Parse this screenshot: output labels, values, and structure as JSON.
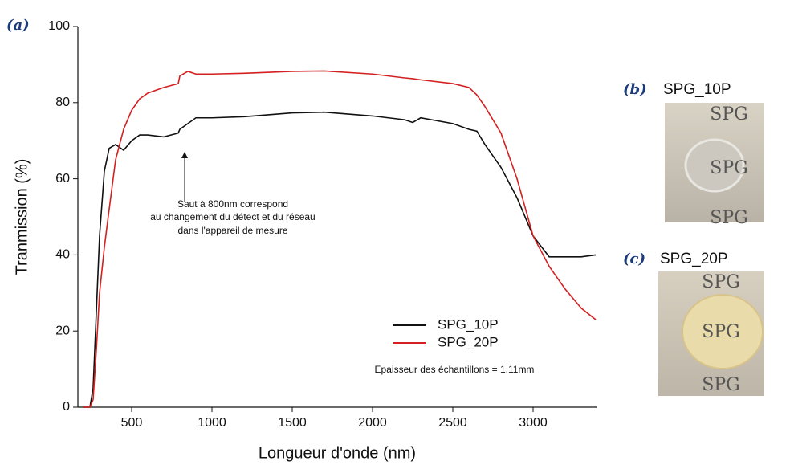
{
  "chart_data": {
    "type": "line",
    "panel_label": "(a)",
    "x_label": "Longueur d'onde (nm)",
    "y_label": "Tranmission (%)",
    "x": [
      200,
      240,
      260,
      280,
      300,
      330,
      360,
      400,
      450,
      500,
      550,
      600,
      700,
      790,
      800,
      850,
      900,
      1000,
      1200,
      1500,
      1700,
      2000,
      2200,
      2250,
      2300,
      2500,
      2600,
      2650,
      2700,
      2800,
      2900,
      3000,
      3100,
      3200,
      3300,
      3390
    ],
    "series": [
      {
        "name": "SPG_10P",
        "color": "#111111",
        "values": [
          0,
          0,
          5,
          25,
          45,
          62,
          68,
          69,
          67.5,
          70,
          71.5,
          71.5,
          71,
          72,
          73,
          74.5,
          76,
          76,
          76.3,
          77.3,
          77.5,
          76.5,
          75.5,
          74.8,
          76,
          74.5,
          73,
          72.5,
          69,
          63,
          55,
          45,
          39.5,
          39.5,
          39.5,
          40
        ]
      },
      {
        "name": "SPG_20P",
        "color": "#d42020",
        "values": [
          0,
          0,
          2,
          15,
          30,
          42,
          52,
          65,
          73,
          78,
          81,
          82.5,
          84,
          85,
          87,
          88.2,
          87.5,
          87.5,
          87.7,
          88.2,
          88.3,
          87.5,
          86.5,
          86.3,
          86,
          85,
          84,
          82,
          79,
          72,
          60,
          45,
          37,
          31,
          26,
          23
        ]
      }
    ],
    "xlim": [
      165,
      3395
    ],
    "xticks": [
      500,
      1000,
      1500,
      2000,
      2500,
      3000
    ],
    "ylim": [
      0,
      100
    ],
    "yticks": [
      0,
      20,
      40,
      60,
      80,
      100
    ],
    "annotation": [
      "Saut à 800nm correspond",
      "au changement du détect et du réseau",
      "dans l'appareil de mesure"
    ],
    "note": "Epaisseur des échantillons = 1.11mm"
  },
  "panels": [
    {
      "label": "(b)",
      "title": "SPG_10P",
      "photo_text": [
        "SPG",
        "SPG",
        "SPG"
      ]
    },
    {
      "label": "(c)",
      "title": "SPG_20P",
      "photo_text": [
        "SPG",
        "SPG",
        "SPG"
      ]
    }
  ]
}
